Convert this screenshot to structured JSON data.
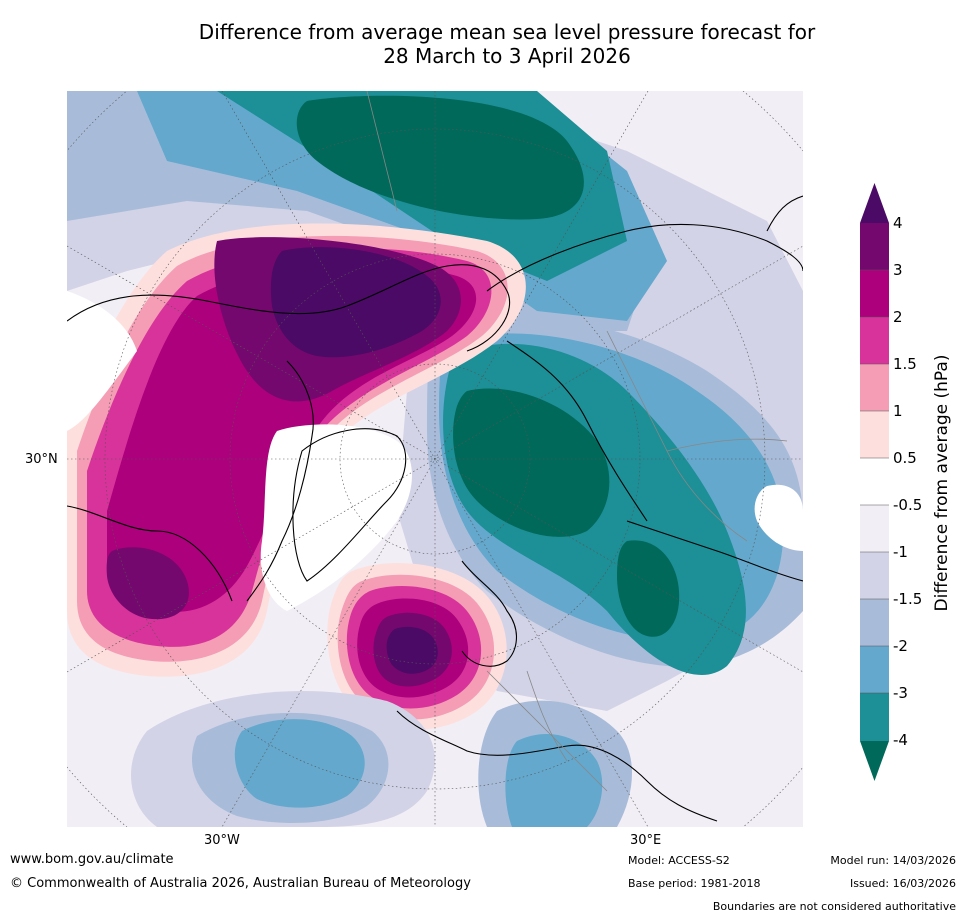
{
  "title": {
    "line1": "Difference from average mean sea level pressure forecast for",
    "line2": "28 March to 3 April 2026"
  },
  "map": {
    "projection": "north-polar-stereographic",
    "label_30n": "30°N",
    "label_30w": "30°W",
    "label_30e": "30°E"
  },
  "colorbar": {
    "title": "Difference from average (hPa)",
    "tick_labels": [
      "4",
      "3",
      "2",
      "1.5",
      "1",
      "0.5",
      "-0.5",
      "-1",
      "-1.5",
      "-2",
      "-3",
      "-4"
    ],
    "colors": {
      "above_4": "#4a0a66",
      "3_to_4": "#74086e",
      "2_to_3": "#ad007c",
      "1.5_to_2": "#d8339a",
      "1_to_1.5": "#f49db5",
      "0.5_to_1": "#fde0de",
      "-0.5_to_0.5": "#ffffff",
      "-1_to_-0.5": "#f2eef5",
      "-1.5_to_-1": "#d3d3e7",
      "-2_to_-1.5": "#a8bcd9",
      "-3_to_-2": "#64a8cd",
      "-4_to_-3": "#1d8f96",
      "below_-4": "#00695a"
    }
  },
  "footer": {
    "website": "www.bom.gov.au/climate",
    "copyright": "© Commonwealth of Australia 2026, Australian Bureau of Meteorology",
    "model": "Model: ACCESS-S2",
    "base_period": "Base period: 1981-2018",
    "model_run": "Model run: 14/03/2026",
    "issued": "Issued: 16/03/2026",
    "disclaimer": "Boundaries are not considered authoritative"
  }
}
